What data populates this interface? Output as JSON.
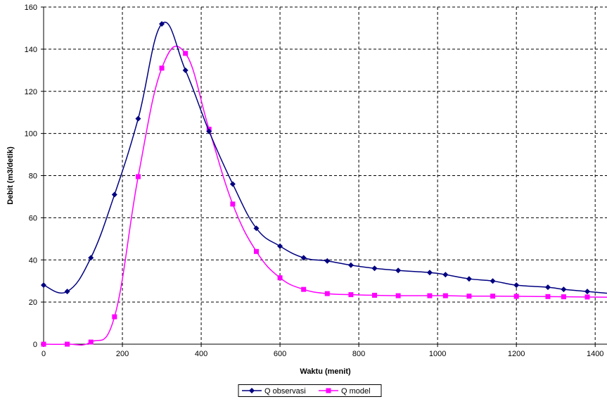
{
  "chart_data": {
    "type": "line",
    "title": "",
    "xlabel": "Waktu (menit)",
    "ylabel": "Debit (m3/detik)",
    "xlim": [
      0,
      1430
    ],
    "ylim": [
      0,
      160
    ],
    "xticks": [
      0,
      200,
      400,
      600,
      800,
      1000,
      1200,
      1400
    ],
    "yticks": [
      0,
      20,
      40,
      60,
      80,
      100,
      120,
      140,
      160
    ],
    "grid": true,
    "legend_position": "bottom",
    "series": [
      {
        "name": "Q observasi",
        "color": "#000080",
        "marker": "diamond",
        "x": [
          0,
          60,
          120,
          180,
          240,
          300,
          360,
          420,
          480,
          540,
          600,
          660,
          720,
          780,
          840,
          900,
          980,
          1020,
          1080,
          1140,
          1200,
          1280,
          1320,
          1380
        ],
        "y": [
          28,
          25,
          41,
          71,
          107,
          152,
          130,
          101,
          76,
          55,
          46.5,
          41,
          39.5,
          37.5,
          36,
          35,
          34,
          33,
          31,
          30,
          28,
          27,
          26,
          25
        ]
      },
      {
        "name": "Q model",
        "color": "#FF00FF",
        "marker": "square",
        "x": [
          0,
          60,
          120,
          180,
          240,
          300,
          360,
          420,
          480,
          540,
          600,
          660,
          720,
          780,
          840,
          900,
          980,
          1020,
          1080,
          1140,
          1200,
          1280,
          1320,
          1380
        ],
        "y": [
          0,
          0,
          1,
          13,
          79.5,
          131,
          138,
          102,
          66.5,
          44,
          31.5,
          26,
          24,
          23.5,
          23.2,
          23,
          23,
          23,
          22.8,
          22.8,
          22.7,
          22.6,
          22.5,
          22.4
        ]
      }
    ]
  }
}
